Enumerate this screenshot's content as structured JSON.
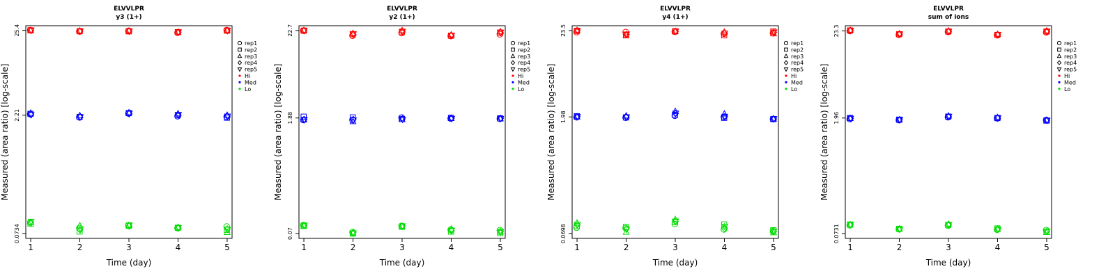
{
  "colors": {
    "Hi": "#ff0000",
    "Med": "#0000ff",
    "Lo": "#00dd00"
  },
  "legend": {
    "reps": [
      {
        "label": "rep1",
        "shape": "circle"
      },
      {
        "label": "rep2",
        "shape": "square"
      },
      {
        "label": "rep3",
        "shape": "triangle-up"
      },
      {
        "label": "rep4",
        "shape": "diamond"
      },
      {
        "label": "rep5",
        "shape": "triangle-down"
      }
    ],
    "levels": [
      "Hi",
      "Med",
      "Lo"
    ]
  },
  "chart_data": [
    {
      "type": "scatter",
      "title": "ELVVLPR",
      "subtitle": "y3 (1+)",
      "xlabel": "Time (day)",
      "ylabel": "Measured (area ratio) [log-scale]",
      "log_y": true,
      "x_ticks": [
        1,
        2,
        3,
        4,
        5
      ],
      "xlim": [
        0.9,
        5.1
      ],
      "y_ticks": [
        0.0734,
        2.21,
        25.4
      ],
      "y_tick_labels": [
        "0.0734",
        "2.21",
        "25.4"
      ],
      "ylim": [
        0.064,
        29
      ],
      "series": [
        {
          "name": "Hi",
          "reps": [
            [
              25.5,
              24.6,
              24.9,
              23.8,
              25.5
            ],
            [
              25.4,
              24.8,
              24.7,
              24.1,
              25.2
            ],
            [
              25.3,
              25.0,
              25.0,
              24.0,
              25.3
            ],
            [
              25.3,
              24.7,
              24.8,
              24.1,
              25.1
            ],
            [
              25.5,
              24.9,
              25.0,
              24.2,
              25.4
            ]
          ]
        },
        {
          "name": "Med",
          "reps": [
            [
              2.28,
              2.08,
              2.33,
              2.15,
              2.12
            ],
            [
              2.3,
              2.1,
              2.35,
              2.21,
              2.06
            ],
            [
              2.35,
              2.19,
              2.38,
              2.31,
              2.21
            ],
            [
              2.25,
              2.09,
              2.31,
              2.22,
              2.16
            ],
            [
              2.24,
              2.11,
              2.34,
              2.25,
              2.15
            ]
          ]
        },
        {
          "name": "Lo",
          "reps": [
            [
              0.101,
              0.086,
              0.093,
              0.086,
              0.09
            ],
            [
              0.098,
              0.078,
              0.092,
              0.087,
              0.082
            ],
            [
              0.102,
              0.092,
              0.093,
              0.088,
              0.076
            ],
            [
              0.1,
              0.082,
              0.091,
              0.086,
              0.084
            ],
            [
              0.104,
              0.084,
              0.094,
              0.087,
              0.083
            ]
          ]
        }
      ]
    },
    {
      "type": "scatter",
      "title": "ELVVLPR",
      "subtitle": "y2 (1+)",
      "xlabel": "Time (day)",
      "ylabel": "Measured (area ratio) [log-scale]",
      "log_y": true,
      "x_ticks": [
        1,
        2,
        3,
        4,
        5
      ],
      "xlim": [
        0.9,
        5.1
      ],
      "y_ticks": [
        0.07,
        1.88,
        22.7
      ],
      "y_tick_labels": [
        "0.07",
        "1.88",
        "22.7"
      ],
      "ylim": [
        0.061,
        26
      ],
      "series": [
        {
          "name": "Hi",
          "reps": [
            [
              22.6,
              19.6,
              21.1,
              19.4,
              20.4
            ],
            [
              22.6,
              20.4,
              21.7,
              19.6,
              21.4
            ],
            [
              22.8,
              20.9,
              22.7,
              20.1,
              22.0
            ],
            [
              22.6,
              20.3,
              21.9,
              19.7,
              21.3
            ],
            [
              22.7,
              20.6,
              22.2,
              19.8,
              21.6
            ]
          ]
        },
        {
          "name": "Med",
          "reps": [
            [
              1.78,
              1.78,
              1.9,
              1.85,
              1.84
            ],
            [
              1.95,
              1.91,
              1.83,
              1.89,
              1.86
            ],
            [
              1.78,
              1.7,
              1.8,
              1.86,
              1.84
            ],
            [
              1.8,
              1.8,
              1.83,
              1.87,
              1.86
            ],
            [
              1.8,
              1.77,
              1.81,
              1.85,
              1.85
            ]
          ]
        },
        {
          "name": "Lo",
          "reps": [
            [
              0.089,
              0.073,
              0.087,
              0.078,
              0.077
            ],
            [
              0.087,
              0.07,
              0.085,
              0.074,
              0.071
            ],
            [
              0.087,
              0.071,
              0.086,
              0.08,
              0.073
            ],
            [
              0.088,
              0.072,
              0.086,
              0.076,
              0.074
            ],
            [
              0.089,
              0.071,
              0.087,
              0.077,
              0.074
            ]
          ]
        }
      ]
    },
    {
      "type": "scatter",
      "title": "ELVVLPR",
      "subtitle": "y4 (1+)",
      "xlabel": "Time (day)",
      "ylabel": "Measured (area ratio) [log-scale]",
      "log_y": true,
      "x_ticks": [
        1,
        2,
        3,
        4,
        5
      ],
      "xlim": [
        0.9,
        5.1
      ],
      "y_ticks": [
        0.0698,
        1.98,
        23.5
      ],
      "y_tick_labels": [
        "0.0698",
        "1.98",
        "23.5"
      ],
      "ylim": [
        0.061,
        27
      ],
      "series": [
        {
          "name": "Hi",
          "reps": [
            [
              22.5,
              22.5,
              22.8,
              21.5,
              21.8
            ],
            [
              23.3,
              20.5,
              23.0,
              20.5,
              22.9
            ],
            [
              23.7,
              20.8,
              23.0,
              22.6,
              21.5
            ],
            [
              23.4,
              21.0,
              22.9,
              21.6,
              22.3
            ],
            [
              23.5,
              21.2,
              23.1,
              21.8,
              22.5
            ]
          ]
        },
        {
          "name": "Med",
          "reps": [
            [
              1.96,
              1.94,
              2.05,
              1.98,
              1.86
            ],
            [
              2.02,
              1.95,
              2.1,
              1.93,
              1.86
            ],
            [
              1.98,
              2.04,
              2.32,
              2.16,
              1.87
            ],
            [
              1.99,
              1.97,
              2.18,
              1.99,
              1.87
            ],
            [
              2.0,
              1.98,
              2.2,
              2.01,
              1.88
            ]
          ]
        },
        {
          "name": "Lo",
          "reps": [
            [
              0.083,
              0.082,
              0.092,
              0.079,
              0.075
            ],
            [
              0.087,
              0.085,
              0.097,
              0.091,
              0.077
            ],
            [
              0.095,
              0.073,
              0.105,
              0.085,
              0.072
            ],
            [
              0.09,
              0.08,
              0.099,
              0.081,
              0.074
            ],
            [
              0.091,
              0.079,
              0.1,
              0.086,
              0.075
            ]
          ]
        }
      ]
    },
    {
      "type": "scatter",
      "title": "ELVVLPR",
      "subtitle": "sum of ions",
      "xlabel": "Time (day)",
      "ylabel": "Measured (area ratio) [log-scale]",
      "log_y": true,
      "x_ticks": [
        1,
        2,
        3,
        4,
        5
      ],
      "xlim": [
        0.9,
        5.1
      ],
      "y_ticks": [
        0.0731,
        1.96,
        23.3
      ],
      "y_tick_labels": [
        "0.0731",
        "1.96",
        "23.3"
      ],
      "ylim": [
        0.064,
        27
      ],
      "series": [
        {
          "name": "Hi",
          "reps": [
            [
              23.3,
              20.9,
              22.7,
              20.6,
              22.4
            ],
            [
              23.6,
              21.2,
              22.9,
              20.8,
              22.9
            ],
            [
              23.8,
              21.5,
              23.3,
              21.2,
              23.3
            ],
            [
              23.5,
              21.2,
              22.9,
              20.9,
              22.8
            ],
            [
              23.6,
              21.3,
              23.1,
              21.0,
              23.0
            ]
          ]
        },
        {
          "name": "Med",
          "reps": [
            [
              1.9,
              1.85,
              2.01,
              1.95,
              1.85
            ],
            [
              1.96,
              1.87,
              2.04,
              1.96,
              1.82
            ],
            [
              1.94,
              1.86,
              2.08,
              1.99,
              1.84
            ],
            [
              1.93,
              1.86,
              2.03,
              1.95,
              1.84
            ],
            [
              1.94,
              1.87,
              2.05,
              1.97,
              1.84
            ]
          ]
        },
        {
          "name": "Lo",
          "reps": [
            [
              0.093,
              0.083,
              0.092,
              0.082,
              0.081
            ],
            [
              0.095,
              0.084,
              0.094,
              0.085,
              0.077
            ],
            [
              0.094,
              0.083,
              0.096,
              0.083,
              0.076
            ],
            [
              0.094,
              0.084,
              0.094,
              0.084,
              0.078
            ],
            [
              0.095,
              0.083,
              0.095,
              0.083,
              0.078
            ]
          ]
        }
      ]
    }
  ]
}
